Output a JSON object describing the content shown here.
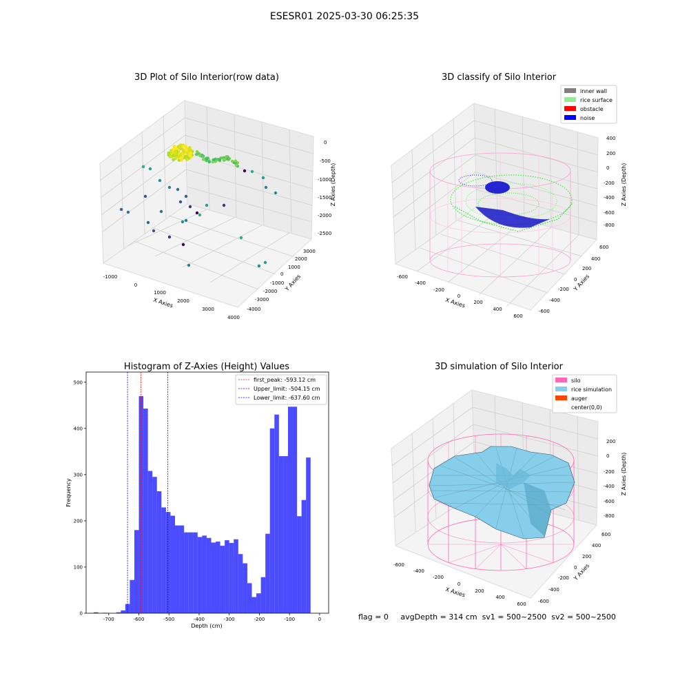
{
  "figure": {
    "title": "ESESR01 2025-03-30 06:25:35",
    "footer": {
      "flag": "flag = 0",
      "avg_depth": "avgDepth = 314 cm",
      "sv1": "sv1 = 500~2500",
      "sv2": "sv2 = 500~2500"
    }
  },
  "chart_data": [
    {
      "type": "scatter",
      "title": "3D Plot of Silo Interior(row data)",
      "xlabel": "X Axies",
      "ylabel": "Y Axies",
      "zlabel": "Z Axies (Depth)",
      "x_ticks": [
        "-1000",
        "0",
        "1000",
        "2000",
        "3000",
        "4000"
      ],
      "y_ticks": [
        "3000",
        "2000",
        "1000",
        "0",
        "-1000",
        "-2000",
        "-3000",
        "-4000"
      ],
      "z_ticks": [
        "0",
        "-500",
        "-1000",
        "-1500",
        "-2000",
        "-2500"
      ],
      "colormap": "viridis"
    },
    {
      "type": "scatter",
      "title": "3D classify of Silo Interior",
      "xlabel": "X Axies",
      "ylabel": "Y Axies",
      "zlabel": "Z Axies (Depth)",
      "x_ticks": [
        "-600",
        "-400",
        "-200",
        "0",
        "200",
        "400",
        "600"
      ],
      "y_ticks": [
        "600",
        "400",
        "200",
        "0",
        "-200",
        "-400",
        "-600"
      ],
      "z_ticks": [
        "400",
        "200",
        "0",
        "-200",
        "-400",
        "-600",
        "-800"
      ],
      "legend": [
        {
          "label": "inner wall",
          "color": "#808080"
        },
        {
          "label": "rice surface",
          "color": "#90ee90"
        },
        {
          "label": "obstacle",
          "color": "#ff0000"
        },
        {
          "label": "noise",
          "color": "#0000ff"
        }
      ],
      "legend_position": "top-right"
    },
    {
      "type": "bar",
      "title": "Histogram of Z-Axies (Height) Values",
      "xlabel": "Depth (cm)",
      "ylabel": "Frequency",
      "xlim": [
        -775,
        30
      ],
      "ylim": [
        0,
        522
      ],
      "x_ticks": [
        -700,
        -600,
        -500,
        -400,
        -300,
        -200,
        -100,
        0
      ],
      "y_ticks": [
        0,
        100,
        200,
        300,
        400,
        500
      ],
      "bar_color": "#0000ff",
      "bins": {
        "start": -750,
        "width": 15,
        "counts": [
          2,
          0,
          1,
          0,
          0,
          2,
          6,
          20,
          72,
          180,
          470,
          443,
          308,
          295,
          264,
          229,
          219,
          211,
          190,
          190,
          175,
          175,
          175,
          165,
          168,
          163,
          153,
          155,
          146,
          158,
          152,
          160,
          128,
          108,
          65,
          35,
          43,
          78,
          172,
          400,
          430,
          340,
          340,
          447,
          447,
          210,
          245,
          337
        ]
      },
      "vlines": [
        {
          "label": "first_peak: -593.12 cm",
          "x": -593.12,
          "color": "#ff0000"
        },
        {
          "label": "Upper_limit: -504.15 cm",
          "x": -504.15,
          "color": "#0000ff"
        },
        {
          "label": "Lower_limit: -637.60 cm",
          "x": -637.6,
          "color": "#0000ff"
        }
      ],
      "legend_position": "top-right"
    },
    {
      "type": "surface",
      "title": "3D simulation of Silo Interior",
      "xlabel": "X Axies",
      "ylabel": "Y Axies",
      "zlabel": "Z Axies (Depth)",
      "x_ticks": [
        "-600",
        "-400",
        "-200",
        "0",
        "200",
        "400",
        "600"
      ],
      "y_ticks": [
        "600",
        "400",
        "200",
        "0",
        "-200",
        "-400",
        "-600"
      ],
      "z_ticks": [
        "200",
        "0",
        "-200",
        "-400",
        "-600",
        "-800"
      ],
      "legend": [
        {
          "label": "silo",
          "color": "#ff69b4"
        },
        {
          "label": "rice simulation",
          "color": "#87ceeb"
        },
        {
          "label": "auger",
          "color": "#ff4500"
        },
        {
          "label": "center(0,0)",
          "color": ""
        }
      ],
      "legend_position": "top-right"
    }
  ]
}
